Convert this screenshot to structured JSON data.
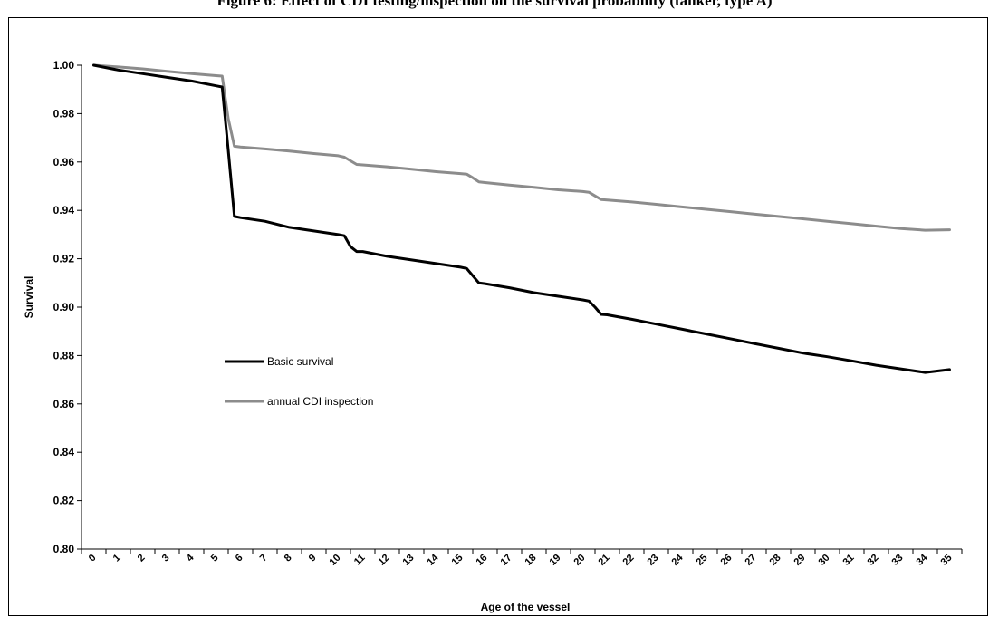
{
  "title": "Figure 6: Effect of CDI testing/inspection on the survival probability (tanker, type A)",
  "chart_data": {
    "type": "line",
    "title": "",
    "xlabel": "Age of the vessel",
    "ylabel": "Survival",
    "ylim": [
      0.8,
      1.0
    ],
    "yticks": [
      "0.80",
      "0.82",
      "0.84",
      "0.86",
      "0.88",
      "0.90",
      "0.92",
      "0.94",
      "0.96",
      "0.98",
      "1.00"
    ],
    "x_categories": [
      "0",
      "1",
      "2",
      "3",
      "4",
      "5",
      "6",
      "7",
      "8",
      "9",
      "10",
      "11",
      "12",
      "13",
      "14",
      "15",
      "16",
      "17",
      "18",
      "19",
      "20",
      "21",
      "22",
      "23",
      "24",
      "25",
      "26",
      "27",
      "28",
      "29",
      "30",
      "31",
      "32",
      "33",
      "34",
      "35"
    ],
    "grid": false,
    "legend_position": "left-center",
    "series": [
      {
        "name": "Basic survival",
        "color": "#000000",
        "points": [
          [
            0,
            1.0
          ],
          [
            1,
            0.998
          ],
          [
            2,
            0.9965
          ],
          [
            3,
            0.995
          ],
          [
            4,
            0.9935
          ],
          [
            5,
            0.9915
          ],
          [
            5.25,
            0.991
          ],
          [
            5.5,
            0.965
          ],
          [
            5.75,
            0.9375
          ],
          [
            6,
            0.937
          ],
          [
            7,
            0.9355
          ],
          [
            8,
            0.933
          ],
          [
            9,
            0.9315
          ],
          [
            10,
            0.93
          ],
          [
            10.25,
            0.9295
          ],
          [
            10.5,
            0.925
          ],
          [
            10.75,
            0.923
          ],
          [
            11,
            0.923
          ],
          [
            12,
            0.921
          ],
          [
            13,
            0.9195
          ],
          [
            14,
            0.918
          ],
          [
            15,
            0.9165
          ],
          [
            15.25,
            0.916
          ],
          [
            15.5,
            0.913
          ],
          [
            15.75,
            0.91
          ],
          [
            16,
            0.9097
          ],
          [
            17,
            0.908
          ],
          [
            18,
            0.906
          ],
          [
            19,
            0.9045
          ],
          [
            20,
            0.903
          ],
          [
            20.25,
            0.9025
          ],
          [
            20.5,
            0.9
          ],
          [
            20.75,
            0.897
          ],
          [
            21,
            0.8968
          ],
          [
            22,
            0.895
          ],
          [
            23,
            0.893
          ],
          [
            24,
            0.891
          ],
          [
            25,
            0.889
          ],
          [
            26,
            0.887
          ],
          [
            27,
            0.885
          ],
          [
            28,
            0.883
          ],
          [
            29,
            0.881
          ],
          [
            30,
            0.8795
          ],
          [
            31,
            0.8778
          ],
          [
            32,
            0.876
          ],
          [
            33,
            0.8745
          ],
          [
            34,
            0.873
          ],
          [
            35,
            0.8742
          ]
        ]
      },
      {
        "name": "annual CDI inspection",
        "color": "#8c8c8c",
        "points": [
          [
            0,
            1.0
          ],
          [
            1,
            0.9993
          ],
          [
            2,
            0.9985
          ],
          [
            3,
            0.9975
          ],
          [
            4,
            0.9965
          ],
          [
            5,
            0.9957
          ],
          [
            5.25,
            0.9955
          ],
          [
            5.5,
            0.978
          ],
          [
            5.75,
            0.9665
          ],
          [
            6,
            0.9662
          ],
          [
            7,
            0.9654
          ],
          [
            8,
            0.9645
          ],
          [
            9,
            0.9635
          ],
          [
            10,
            0.9626
          ],
          [
            10.25,
            0.962
          ],
          [
            10.5,
            0.9605
          ],
          [
            10.75,
            0.959
          ],
          [
            11,
            0.9588
          ],
          [
            12,
            0.958
          ],
          [
            13,
            0.957
          ],
          [
            14,
            0.956
          ],
          [
            15,
            0.9552
          ],
          [
            15.25,
            0.955
          ],
          [
            15.5,
            0.9535
          ],
          [
            15.75,
            0.9518
          ],
          [
            16,
            0.9515
          ],
          [
            17,
            0.9505
          ],
          [
            18,
            0.9495
          ],
          [
            19,
            0.9485
          ],
          [
            20,
            0.9478
          ],
          [
            20.25,
            0.9475
          ],
          [
            20.5,
            0.946
          ],
          [
            20.75,
            0.9445
          ],
          [
            21,
            0.9443
          ],
          [
            22,
            0.9435
          ],
          [
            23,
            0.9425
          ],
          [
            24,
            0.9415
          ],
          [
            25,
            0.9405
          ],
          [
            26,
            0.9395
          ],
          [
            27,
            0.9385
          ],
          [
            28,
            0.9375
          ],
          [
            29,
            0.9365
          ],
          [
            30,
            0.9355
          ],
          [
            31,
            0.9345
          ],
          [
            32,
            0.9335
          ],
          [
            33,
            0.9325
          ],
          [
            34,
            0.9318
          ],
          [
            35,
            0.932
          ]
        ]
      }
    ]
  }
}
